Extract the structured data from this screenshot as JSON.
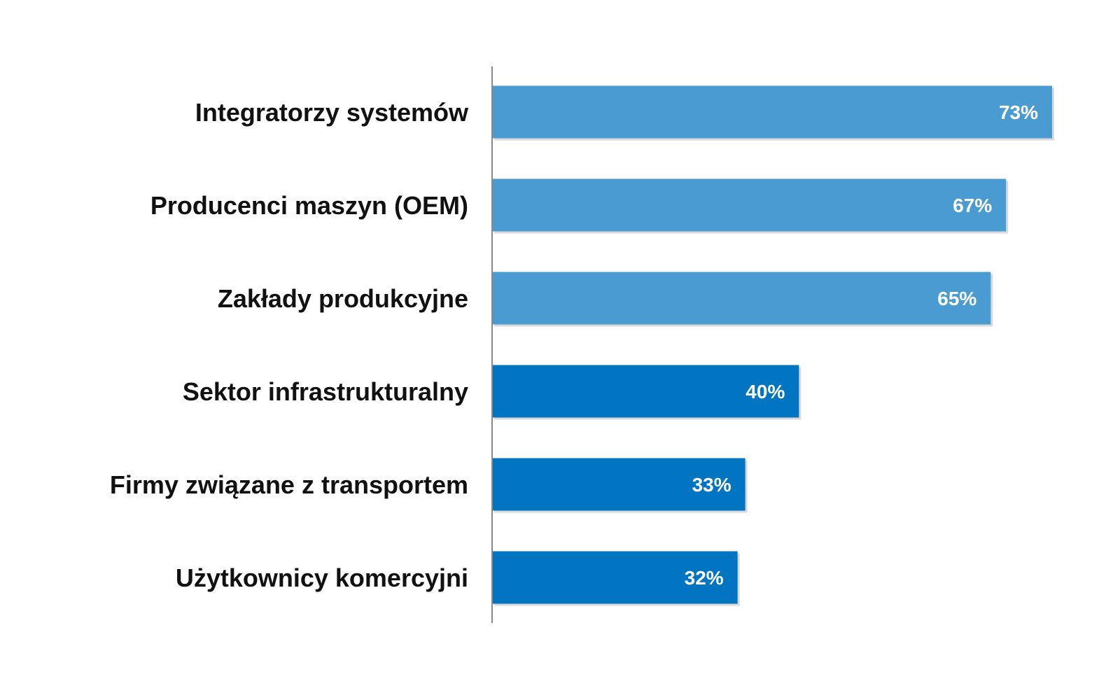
{
  "chart_data": {
    "type": "bar",
    "orientation": "horizontal",
    "categories": [
      "Integratorzy systemów",
      "Producenci maszyn (OEM)",
      "Zakłady produkcyjne",
      "Sektor infrastrukturalny",
      "Firmy związane z transportem",
      "Użytkownicy komercyjni"
    ],
    "values": [
      73,
      67,
      65,
      40,
      33,
      32
    ],
    "value_labels": [
      "73%",
      "67%",
      "65%",
      "40%",
      "33%",
      "32%"
    ],
    "bar_colors": [
      "#4b9bd3",
      "#4b9bd3",
      "#4b9bd3",
      "#0175c1",
      "#0175c1",
      "#0175c1"
    ],
    "xlim": [
      0,
      73
    ],
    "grid": false,
    "legend": "none",
    "title": "",
    "xlabel": "",
    "ylabel": ""
  },
  "colors": {
    "axis_line": "#888888",
    "category_text": "#111111",
    "value_text": "#ffffff",
    "bar_shadow": "#b9b9b9"
  }
}
